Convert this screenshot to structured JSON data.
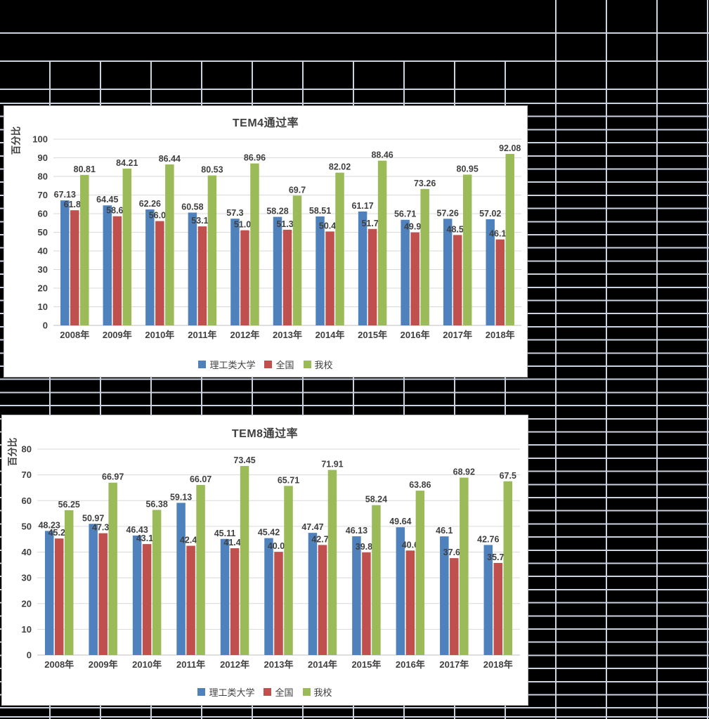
{
  "chart_data": [
    {
      "type": "bar",
      "title": "TEM4通过率",
      "xlabel": "",
      "ylabel": "百分比",
      "ylim": [
        0,
        100
      ],
      "y_step": 10,
      "grid": true,
      "legend_position": "bottom",
      "data_labels": true,
      "categories": [
        "2008年",
        "2009年",
        "2010年",
        "2011年",
        "2012年",
        "2013年",
        "2014年",
        "2015年",
        "2016年",
        "2017年",
        "2018年"
      ],
      "series": [
        {
          "name": "理工类大学",
          "color": "#4F81BD",
          "values": [
            67.13,
            64.45,
            62.26,
            60.58,
            57.3,
            58.28,
            58.51,
            61.17,
            56.71,
            57.26,
            57.02
          ]
        },
        {
          "name": "全国",
          "color": "#C0504D",
          "values": [
            61.83,
            58.62,
            56.01,
            53.17,
            51.09,
            51.37,
            50.43,
            51.79,
            49.92,
            48.54,
            46.16
          ]
        },
        {
          "name": "我校",
          "color": "#9BBB59",
          "values": [
            80.81,
            84.21,
            86.44,
            80.53,
            86.96,
            69.7,
            82.02,
            88.46,
            73.26,
            80.95,
            92.08
          ]
        }
      ]
    },
    {
      "type": "bar",
      "title": "TEM8通过率",
      "xlabel": "",
      "ylabel": "百分比",
      "ylim": [
        0,
        80
      ],
      "y_step": 10,
      "grid": true,
      "legend_position": "bottom",
      "data_labels": true,
      "categories": [
        "2008年",
        "2009年",
        "2010年",
        "2011年",
        "2012年",
        "2013年",
        "2014年",
        "2015年",
        "2016年",
        "2017年",
        "2018年"
      ],
      "series": [
        {
          "name": "理工类大学",
          "color": "#4F81BD",
          "values": [
            48.23,
            50.97,
            46.43,
            59.13,
            45.11,
            45.42,
            47.47,
            46.13,
            49.64,
            46.1,
            42.76
          ]
        },
        {
          "name": "全国",
          "color": "#C0504D",
          "values": [
            45.28,
            47.33,
            43.11,
            42.44,
            41.49,
            40.08,
            42.76,
            39.85,
            40.6,
            37.65,
            35.78
          ]
        },
        {
          "name": "我校",
          "color": "#9BBB59",
          "values": [
            56.25,
            66.97,
            56.38,
            66.07,
            73.45,
            65.71,
            71.91,
            58.24,
            63.86,
            68.92,
            67.5
          ]
        }
      ]
    }
  ],
  "colors": {
    "sheet_background": "#000000",
    "sheet_gridline": "#ccd3e0",
    "chart_background": "#ffffff",
    "chart_gridline": "#d9d9d9",
    "axis_text": "#404040"
  }
}
